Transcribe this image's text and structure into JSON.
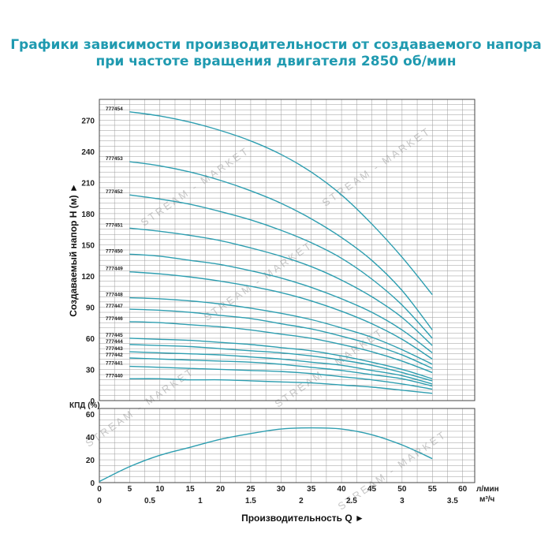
{
  "title": {
    "line1": "Графики зависимости производительности от создаваемого напора",
    "line2": "при частоте вращения двигателя 2850 об/мин"
  },
  "watermark": "STREAM - MARKET",
  "colors": {
    "title": "#1f9ab0",
    "curve": "#2d9eb0",
    "grid": "#9a9a9a",
    "frame": "#444444"
  },
  "chart_data": [
    {
      "type": "line",
      "ylabel": "Создаваемый напор H (м) ►",
      "xlabel": "Производительность Q ►",
      "ylim": [
        0,
        290
      ],
      "yticks": [
        0,
        30,
        60,
        90,
        120,
        150,
        180,
        210,
        240,
        270
      ],
      "xlim": [
        0,
        62
      ],
      "xticks": [
        0,
        5,
        10,
        15,
        20,
        25,
        30,
        35,
        40,
        45,
        50,
        55,
        60
      ],
      "xunit": "л/мин",
      "xticks2": [
        "0",
        "0.5",
        "1",
        "1.5",
        "2",
        "2.5",
        "3",
        "3.5"
      ],
      "xticks2_values": [
        0,
        0.5,
        1,
        1.5,
        2,
        2.5,
        3,
        3.5
      ],
      "xunit2": "м³/ч",
      "grid": true,
      "series": [
        {
          "name": "777454",
          "x": [
            5,
            10,
            15,
            20,
            25,
            30,
            35,
            40,
            45,
            50,
            55
          ],
          "y": [
            278,
            274,
            268,
            260,
            250,
            237,
            220,
            198,
            170,
            138,
            102
          ]
        },
        {
          "name": "777453",
          "x": [
            5,
            10,
            15,
            20,
            25,
            30,
            35,
            40,
            45,
            50,
            55
          ],
          "y": [
            230,
            226,
            220,
            212,
            202,
            190,
            175,
            157,
            135,
            106,
            68
          ]
        },
        {
          "name": "777452",
          "x": [
            5,
            10,
            15,
            20,
            25,
            30,
            35,
            40,
            45,
            50,
            55
          ],
          "y": [
            198,
            194,
            189,
            182,
            174,
            164,
            152,
            137,
            117,
            92,
            60
          ]
        },
        {
          "name": "777451",
          "x": [
            5,
            10,
            15,
            20,
            25,
            30,
            35,
            40,
            45,
            50,
            55
          ],
          "y": [
            166,
            163,
            159,
            154,
            147,
            139,
            129,
            116,
            100,
            80,
            53
          ]
        },
        {
          "name": "777450",
          "x": [
            5,
            10,
            15,
            20,
            25,
            30,
            35,
            40,
            45,
            50,
            55
          ],
          "y": [
            141,
            139,
            135,
            131,
            125,
            118,
            109,
            98,
            85,
            68,
            46
          ]
        },
        {
          "name": "777449",
          "x": [
            5,
            10,
            15,
            20,
            25,
            30,
            35,
            40,
            45,
            50,
            55
          ],
          "y": [
            124,
            122,
            119,
            115,
            110,
            104,
            96,
            86,
            74,
            59,
            40
          ]
        },
        {
          "name": "777448",
          "x": [
            5,
            10,
            15,
            20,
            25,
            30,
            35,
            40,
            45,
            50,
            55
          ],
          "y": [
            99,
            98,
            96,
            93,
            89,
            84,
            78,
            70,
            61,
            49,
            35
          ]
        },
        {
          "name": "777447",
          "x": [
            5,
            10,
            15,
            20,
            25,
            30,
            35,
            40,
            45,
            50,
            55
          ],
          "y": [
            88,
            87,
            85,
            82,
            79,
            74,
            69,
            62,
            54,
            44,
            31
          ]
        },
        {
          "name": "777446",
          "x": [
            5,
            10,
            15,
            20,
            25,
            30,
            35,
            40,
            45,
            50,
            55
          ],
          "y": [
            76,
            75,
            73,
            71,
            68,
            64,
            60,
            54,
            47,
            38,
            27
          ]
        },
        {
          "name": "777445",
          "x": [
            5,
            10,
            15,
            20,
            25,
            30,
            35,
            40,
            45,
            50,
            55
          ],
          "y": [
            60,
            59,
            58,
            56,
            54,
            51,
            48,
            43,
            37,
            30,
            21
          ]
        },
        {
          "name": "777444",
          "x": [
            5,
            10,
            15,
            20,
            25,
            30,
            35,
            40,
            45,
            50,
            55
          ],
          "y": [
            54,
            53,
            52,
            50,
            48,
            46,
            43,
            39,
            34,
            27,
            19
          ]
        },
        {
          "name": "777443",
          "x": [
            5,
            10,
            15,
            20,
            25,
            30,
            35,
            40,
            45,
            50,
            55
          ],
          "y": [
            47,
            46,
            45,
            44,
            42,
            40,
            37,
            34,
            29,
            24,
            16
          ]
        },
        {
          "name": "777442",
          "x": [
            5,
            10,
            15,
            20,
            25,
            30,
            35,
            40,
            45,
            50,
            55
          ],
          "y": [
            41,
            40,
            39,
            38,
            37,
            35,
            32,
            29,
            25,
            21,
            14
          ]
        },
        {
          "name": "777441",
          "x": [
            5,
            10,
            15,
            20,
            25,
            30,
            35,
            40,
            45,
            50,
            55
          ],
          "y": [
            33,
            32,
            31,
            30,
            29,
            28,
            26,
            23,
            20,
            16,
            11
          ]
        },
        {
          "name": "777440",
          "x": [
            5,
            10,
            15,
            20,
            25,
            30,
            35,
            40,
            45,
            50,
            55
          ],
          "y": [
            21,
            21,
            20,
            20,
            19,
            18,
            17,
            15,
            13,
            10,
            7
          ]
        }
      ]
    },
    {
      "type": "line",
      "ylabel": "КПД (%)",
      "ylim": [
        0,
        65
      ],
      "yticks": [
        0,
        20,
        40,
        60
      ],
      "xlim": [
        0,
        62
      ],
      "grid": true,
      "series": [
        {
          "x": [
            0,
            5,
            10,
            15,
            20,
            25,
            30,
            35,
            40,
            45,
            50,
            55
          ],
          "y": [
            1,
            14,
            24,
            31,
            38,
            43,
            47,
            48,
            47,
            42,
            33,
            21
          ]
        }
      ]
    }
  ]
}
